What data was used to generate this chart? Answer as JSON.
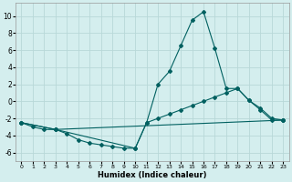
{
  "xlabel": "Humidex (Indice chaleur)",
  "xlim": [
    -0.5,
    23.5
  ],
  "ylim": [
    -7,
    11.5
  ],
  "bg_color": "#d4eeee",
  "grid_color": "#b8d8d8",
  "line_color": "#006060",
  "xticks": [
    0,
    1,
    2,
    3,
    4,
    5,
    6,
    7,
    8,
    9,
    10,
    11,
    12,
    13,
    14,
    15,
    16,
    17,
    18,
    19,
    20,
    21,
    22,
    23
  ],
  "yticks": [
    -6,
    -4,
    -2,
    0,
    2,
    4,
    6,
    8,
    10
  ],
  "line1_x": [
    0,
    1,
    2,
    3,
    4,
    5,
    6,
    7,
    8,
    9,
    10,
    11,
    12,
    13,
    14,
    15,
    16,
    17,
    18,
    19,
    20,
    21,
    22,
    23
  ],
  "line1_y": [
    -2.5,
    -3.0,
    -3.3,
    -3.3,
    -3.8,
    -4.5,
    -4.9,
    -5.1,
    -5.3,
    -5.5,
    -5.5,
    -2.5,
    2.0,
    3.5,
    6.5,
    9.5,
    10.5,
    6.2,
    1.5,
    1.5,
    0.1,
    -1.0,
    -2.2,
    -2.2
  ],
  "line2_x": [
    0,
    3,
    10,
    11,
    12,
    13,
    14,
    15,
    16,
    17,
    18,
    19,
    20,
    21,
    22,
    23
  ],
  "line2_y": [
    -2.5,
    -3.3,
    -5.5,
    -2.5,
    -2.0,
    -1.5,
    -1.0,
    -0.5,
    0.0,
    0.5,
    1.0,
    1.5,
    0.1,
    -0.8,
    -2.0,
    -2.2
  ],
  "line3_x": [
    0,
    3,
    23
  ],
  "line3_y": [
    -2.5,
    -3.3,
    -2.2
  ]
}
